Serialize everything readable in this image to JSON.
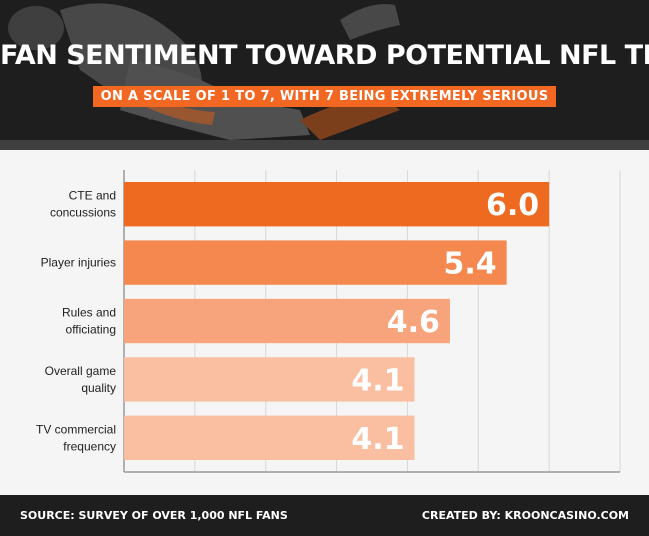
{
  "header": {
    "title": "FAN SENTIMENT TOWARD POTENTIAL NFL THREATS",
    "subtitle": "ON A SCALE OF 1 TO 7, WITH 7 BEING EXTREMELY SERIOUS"
  },
  "footer": {
    "source": "SOURCE: SURVEY OF OVER 1,000 NFL FANS",
    "credit": "CREATED BY: KROONCASINO.COM"
  },
  "colors": {
    "header_bg": "#1e1e1e",
    "accent": "#f26722",
    "bar_shades": [
      "#ee6a20",
      "#f4884f",
      "#f7a47c",
      "#f9bfa0",
      "#f9bfa0"
    ]
  },
  "chart_data": {
    "type": "bar",
    "orientation": "horizontal",
    "categories": [
      [
        "CTE and",
        "concussions"
      ],
      [
        "Player injuries"
      ],
      [
        "Rules and",
        "officiating"
      ],
      [
        "Overall game",
        "quality"
      ],
      [
        "TV commercial",
        "frequency"
      ]
    ],
    "values": [
      6.0,
      5.4,
      4.6,
      4.1,
      4.1
    ],
    "value_labels": [
      "6.0",
      "5.4",
      "4.6",
      "4.1",
      "4.1"
    ],
    "xlim": [
      0,
      7
    ],
    "grid": true
  }
}
